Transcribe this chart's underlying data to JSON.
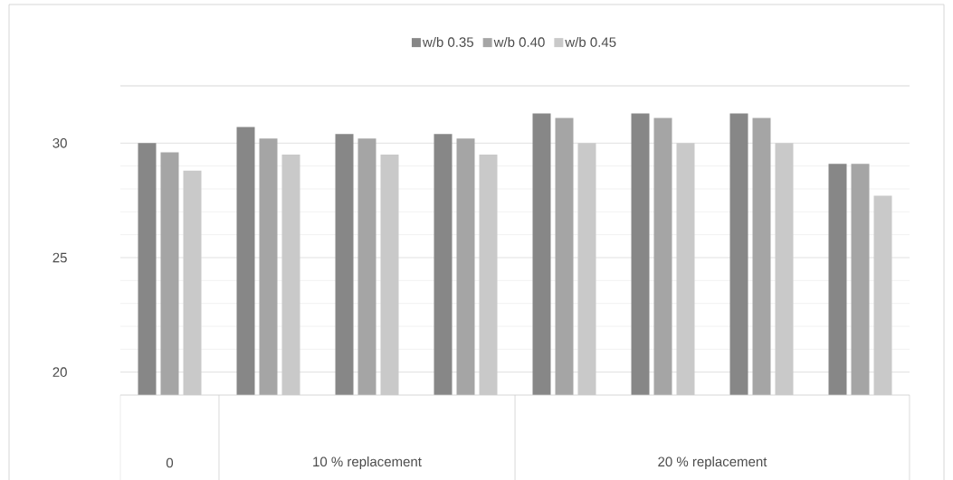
{
  "chart_data": {
    "type": "bar",
    "categories": [
      null,
      null,
      null,
      null,
      null,
      null,
      null,
      null
    ],
    "series": [
      {
        "name": "w/b 0.35",
        "color": "#878787",
        "values": [
          30.0,
          30.7,
          30.4,
          30.4,
          31.3,
          31.3,
          31.3,
          29.1
        ]
      },
      {
        "name": "w/b 0.40",
        "color": "#a5a5a5",
        "values": [
          29.6,
          30.2,
          30.2,
          30.2,
          31.1,
          31.1,
          31.1,
          29.1
        ]
      },
      {
        "name": "w/b 0.45",
        "color": "#c9c9c9",
        "values": [
          28.8,
          29.5,
          29.5,
          29.5,
          30.0,
          30.0,
          30.0,
          27.7
        ]
      }
    ],
    "ylim": [
      19,
      32.5
    ],
    "yticks": [
      20,
      25,
      30
    ],
    "grid": "y",
    "legend": "top",
    "annotations": [
      "0",
      "10 % replacement",
      "20 % replacement"
    ]
  }
}
